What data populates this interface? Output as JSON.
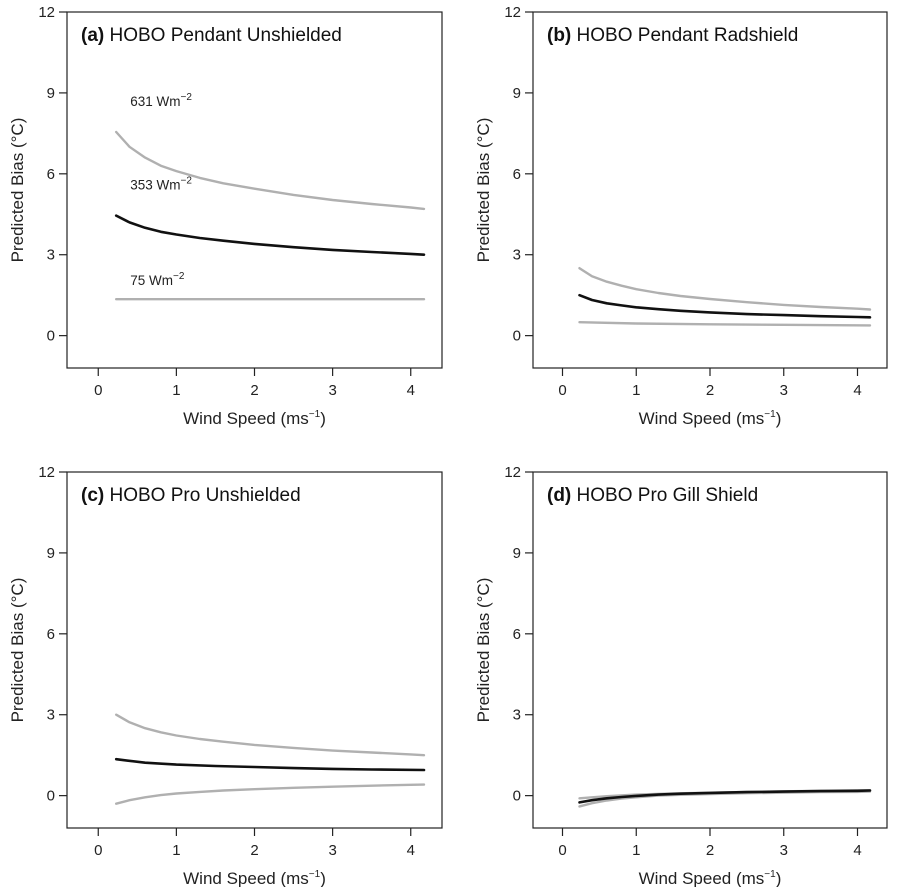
{
  "chart_data": [
    {
      "type": "line",
      "panel_letter": "(a)",
      "title": "HOBO Pendant Unshielded",
      "xlabel": "Wind Speed (ms",
      "xlabel_sup": "−1",
      "xlabel_end": ")",
      "ylabel": "Predicted Bias (°C)",
      "xlim": [
        -0.4,
        4.4
      ],
      "ylim": [
        -1.2,
        12
      ],
      "xticks": [
        0,
        1,
        2,
        3,
        4
      ],
      "yticks": [
        0,
        3,
        6,
        9,
        12
      ],
      "grid": false,
      "series": [
        {
          "name": "631 Wm",
          "name_sup": "−2",
          "color": "#b0b0b0",
          "x": [
            0.23,
            0.4,
            0.6,
            0.8,
            1.0,
            1.3,
            1.6,
            2.0,
            2.5,
            3.0,
            3.5,
            4.0,
            4.17
          ],
          "y": [
            7.55,
            7.0,
            6.6,
            6.3,
            6.1,
            5.85,
            5.65,
            5.45,
            5.22,
            5.03,
            4.88,
            4.75,
            4.7
          ]
        },
        {
          "name": "353 Wm",
          "name_sup": "−2",
          "color": "#111111",
          "x": [
            0.23,
            0.4,
            0.6,
            0.8,
            1.0,
            1.3,
            1.6,
            2.0,
            2.5,
            3.0,
            3.5,
            4.0,
            4.17
          ],
          "y": [
            4.45,
            4.2,
            4.0,
            3.85,
            3.75,
            3.62,
            3.52,
            3.4,
            3.28,
            3.18,
            3.1,
            3.03,
            3.0
          ]
        },
        {
          "name": "75 Wm",
          "name_sup": "−2",
          "color": "#b0b0b0",
          "x": [
            0.23,
            4.17
          ],
          "y": [
            1.35,
            1.35
          ]
        }
      ]
    },
    {
      "type": "line",
      "panel_letter": "(b)",
      "title": "HOBO Pendant Radshield",
      "xlabel": "Wind Speed (ms",
      "xlabel_sup": "−1",
      "xlabel_end": ")",
      "ylabel": "Predicted Bias (°C)",
      "xlim": [
        -0.4,
        4.4
      ],
      "ylim": [
        -1.2,
        12
      ],
      "xticks": [
        0,
        1,
        2,
        3,
        4
      ],
      "yticks": [
        0,
        3,
        6,
        9,
        12
      ],
      "grid": false,
      "series": [
        {
          "color": "#b0b0b0",
          "x": [
            0.23,
            0.4,
            0.6,
            0.8,
            1.0,
            1.3,
            1.6,
            2.0,
            2.5,
            3.0,
            3.5,
            4.0,
            4.17
          ],
          "y": [
            2.5,
            2.2,
            2.0,
            1.85,
            1.72,
            1.58,
            1.47,
            1.36,
            1.24,
            1.14,
            1.06,
            1.0,
            0.97
          ]
        },
        {
          "color": "#111111",
          "x": [
            0.23,
            0.4,
            0.6,
            0.8,
            1.0,
            1.3,
            1.6,
            2.0,
            2.5,
            3.0,
            3.5,
            4.0,
            4.17
          ],
          "y": [
            1.5,
            1.32,
            1.2,
            1.12,
            1.05,
            0.98,
            0.92,
            0.86,
            0.8,
            0.76,
            0.72,
            0.69,
            0.68
          ]
        },
        {
          "color": "#b0b0b0",
          "x": [
            0.23,
            1.0,
            2.0,
            3.0,
            4.17
          ],
          "y": [
            0.5,
            0.45,
            0.42,
            0.4,
            0.38
          ]
        }
      ]
    },
    {
      "type": "line",
      "panel_letter": "(c)",
      "title": "HOBO Pro Unshielded",
      "xlabel": "Wind Speed (ms",
      "xlabel_sup": "−1",
      "xlabel_end": ")",
      "ylabel": "Predicted Bias (°C)",
      "xlim": [
        -0.4,
        4.4
      ],
      "ylim": [
        -1.2,
        12
      ],
      "xticks": [
        0,
        1,
        2,
        3,
        4
      ],
      "yticks": [
        0,
        3,
        6,
        9,
        12
      ],
      "grid": false,
      "series": [
        {
          "color": "#b0b0b0",
          "x": [
            0.23,
            0.4,
            0.6,
            0.8,
            1.0,
            1.3,
            1.6,
            2.0,
            2.5,
            3.0,
            3.5,
            4.0,
            4.17
          ],
          "y": [
            3.0,
            2.72,
            2.5,
            2.35,
            2.23,
            2.1,
            2.0,
            1.88,
            1.77,
            1.67,
            1.6,
            1.53,
            1.5
          ]
        },
        {
          "color": "#111111",
          "x": [
            0.23,
            0.6,
            1.0,
            1.5,
            2.0,
            2.5,
            3.0,
            3.5,
            4.17
          ],
          "y": [
            1.35,
            1.22,
            1.15,
            1.1,
            1.06,
            1.02,
            0.99,
            0.97,
            0.95
          ]
        },
        {
          "color": "#b0b0b0",
          "x": [
            0.23,
            0.4,
            0.6,
            0.8,
            1.0,
            1.3,
            1.6,
            2.0,
            2.5,
            3.0,
            3.5,
            4.0,
            4.17
          ],
          "y": [
            -0.3,
            -0.17,
            -0.06,
            0.02,
            0.08,
            0.14,
            0.19,
            0.24,
            0.29,
            0.33,
            0.37,
            0.4,
            0.41
          ]
        }
      ]
    },
    {
      "type": "line",
      "panel_letter": "(d)",
      "title": "HOBO Pro Gill Shield",
      "xlabel": "Wind Speed (ms",
      "xlabel_sup": "−1",
      "xlabel_end": ")",
      "ylabel": "Predicted Bias (°C)",
      "xlim": [
        -0.4,
        4.4
      ],
      "ylim": [
        -1.2,
        12
      ],
      "xticks": [
        0,
        1,
        2,
        3,
        4
      ],
      "yticks": [
        0,
        3,
        6,
        9,
        12
      ],
      "grid": false,
      "series": [
        {
          "color": "#b0b0b0",
          "x": [
            0.23,
            0.6,
            1.0,
            1.5,
            2.0,
            2.5,
            3.0,
            3.5,
            4.17
          ],
          "y": [
            -0.1,
            -0.02,
            0.04,
            0.08,
            0.11,
            0.14,
            0.16,
            0.18,
            0.2
          ]
        },
        {
          "color": "#b0b0b0",
          "x": [
            0.23,
            0.4,
            0.6,
            0.8,
            1.0,
            1.3,
            1.6,
            2.0,
            2.5,
            3.0,
            3.5,
            4.0,
            4.17
          ],
          "y": [
            -0.4,
            -0.28,
            -0.18,
            -0.11,
            -0.06,
            0.0,
            0.03,
            0.06,
            0.09,
            0.11,
            0.13,
            0.14,
            0.15
          ]
        },
        {
          "color": "#111111",
          "x": [
            0.23,
            0.4,
            0.6,
            0.8,
            1.0,
            1.3,
            1.6,
            2.0,
            2.5,
            3.0,
            3.5,
            4.0,
            4.17
          ],
          "y": [
            -0.25,
            -0.17,
            -0.1,
            -0.05,
            -0.01,
            0.04,
            0.07,
            0.1,
            0.13,
            0.15,
            0.17,
            0.18,
            0.19
          ]
        }
      ]
    }
  ]
}
